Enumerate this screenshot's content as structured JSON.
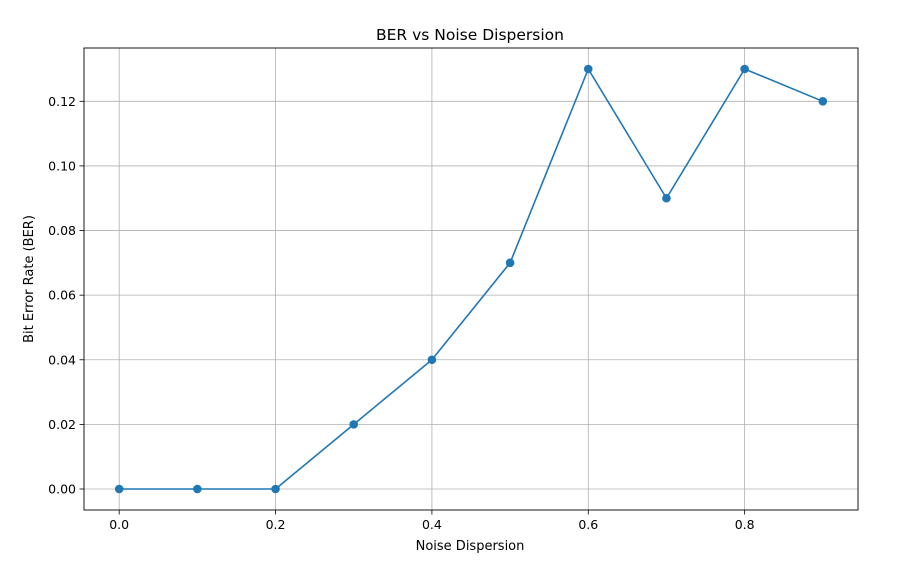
{
  "chart_data": {
    "type": "line",
    "title": "BER vs Noise Dispersion",
    "xlabel": "Noise Dispersion",
    "ylabel": "Bit Error Rate (BER)",
    "x": [
      0.0,
      0.1,
      0.2,
      0.3,
      0.4,
      0.5,
      0.6,
      0.7,
      0.8,
      0.9
    ],
    "series": [
      {
        "values": [
          0.0,
          0.0,
          0.0,
          0.02,
          0.04,
          0.07,
          0.13,
          0.09,
          0.13,
          0.12
        ],
        "color": "#1f77b4",
        "marker": "circle"
      }
    ],
    "xlim": [
      -0.045,
      0.945
    ],
    "ylim": [
      -0.0065,
      0.1365
    ],
    "xticks": [
      "0.0",
      "0.2",
      "0.4",
      "0.6",
      "0.8"
    ],
    "xtick_values": [
      0.0,
      0.2,
      0.4,
      0.6,
      0.8
    ],
    "yticks": [
      "0.00",
      "0.02",
      "0.04",
      "0.06",
      "0.08",
      "0.10",
      "0.12"
    ],
    "ytick_values": [
      0.0,
      0.02,
      0.04,
      0.06,
      0.08,
      0.1,
      0.12
    ],
    "grid": true,
    "legend": "none"
  }
}
